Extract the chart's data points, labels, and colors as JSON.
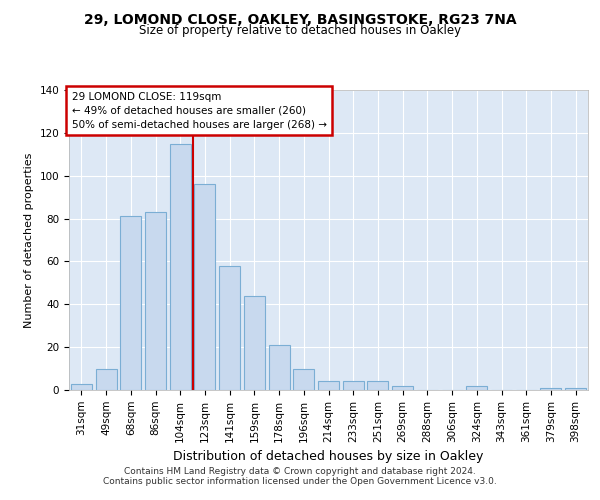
{
  "title_line1": "29, LOMOND CLOSE, OAKLEY, BASINGSTOKE, RG23 7NA",
  "title_line2": "Size of property relative to detached houses in Oakley",
  "xlabel": "Distribution of detached houses by size in Oakley",
  "ylabel": "Number of detached properties",
  "categories": [
    "31sqm",
    "49sqm",
    "68sqm",
    "86sqm",
    "104sqm",
    "123sqm",
    "141sqm",
    "159sqm",
    "178sqm",
    "196sqm",
    "214sqm",
    "233sqm",
    "251sqm",
    "269sqm",
    "288sqm",
    "306sqm",
    "324sqm",
    "343sqm",
    "361sqm",
    "379sqm",
    "398sqm"
  ],
  "values": [
    3,
    10,
    81,
    83,
    115,
    96,
    58,
    44,
    21,
    10,
    4,
    4,
    4,
    2,
    0,
    0,
    2,
    0,
    0,
    1,
    1
  ],
  "bar_color": "#c8d9ee",
  "bar_edge_color": "#7baed4",
  "highlight_line_label": "29 LOMOND CLOSE: 119sqm",
  "annotation_line1": "← 49% of detached houses are smaller (260)",
  "annotation_line2": "50% of semi-detached houses are larger (268) →",
  "annotation_box_color": "#ffffff",
  "annotation_box_edge": "#cc0000",
  "vline_color": "#cc0000",
  "vline_x": 4.5,
  "ylim": [
    0,
    140
  ],
  "yticks": [
    0,
    20,
    40,
    60,
    80,
    100,
    120,
    140
  ],
  "background_color": "#ffffff",
  "plot_bg_color": "#dde8f5",
  "grid_color": "#ffffff",
  "title_fontsize": 10,
  "subtitle_fontsize": 8.5,
  "ylabel_fontsize": 8,
  "xlabel_fontsize": 9,
  "tick_fontsize": 7.5,
  "footer_line1": "Contains HM Land Registry data © Crown copyright and database right 2024.",
  "footer_line2": "Contains public sector information licensed under the Open Government Licence v3.0."
}
